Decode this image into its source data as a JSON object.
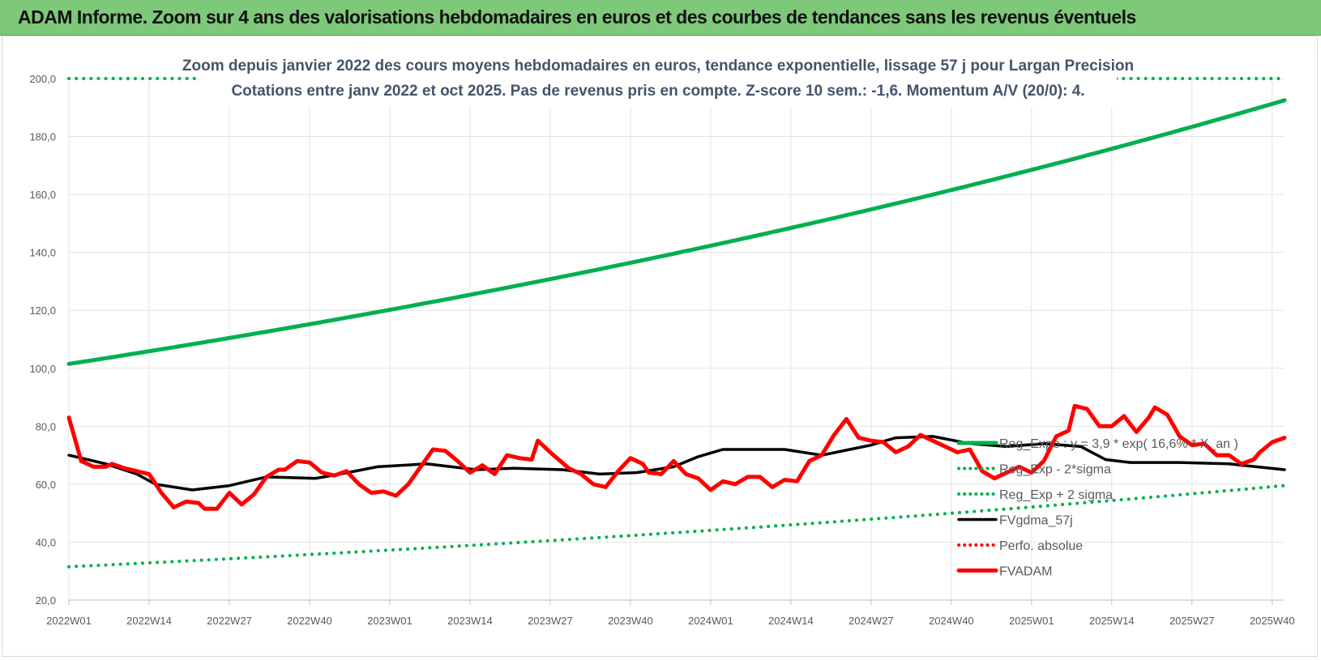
{
  "header": {
    "title": "ADAM Informe. Zoom sur 4 ans des valorisations hebdomadaires en euros et des courbes de tendances sans les revenus éventuels"
  },
  "chart_data": {
    "type": "line",
    "title": "Zoom depuis janvier 2022 des cours moyens hebdomadaires en euros, tendance exponentielle, lissage 57 j pour Largan Precision",
    "subtitle": "Cotations entre janv 2022 et oct 2025. Pas de revenus pris en compte. Z-score 10 sem.: -1,6.  Momentum A/V (20/0): 4.",
    "xlabel": "",
    "ylabel": "",
    "ylim": [
      20,
      200
    ],
    "yticks": [
      20,
      40,
      60,
      80,
      100,
      120,
      140,
      160,
      180,
      200
    ],
    "ytick_labels": [
      "20,0",
      "40,0",
      "60,0",
      "80,0",
      "100,0",
      "120,0",
      "140,0",
      "160,0",
      "180,0",
      "200,0"
    ],
    "x_count": 198,
    "xtick_labels": [
      {
        "i": 0,
        "label": "2022W01"
      },
      {
        "i": 13,
        "label": "2022W14"
      },
      {
        "i": 26,
        "label": "2022W27"
      },
      {
        "i": 39,
        "label": "2022W40"
      },
      {
        "i": 52,
        "label": "2023W01"
      },
      {
        "i": 65,
        "label": "2023W14"
      },
      {
        "i": 78,
        "label": "2023W27"
      },
      {
        "i": 91,
        "label": "2023W40"
      },
      {
        "i": 104,
        "label": "2024W01"
      },
      {
        "i": 117,
        "label": "2024W14"
      },
      {
        "i": 130,
        "label": "2024W27"
      },
      {
        "i": 143,
        "label": "2024W40"
      },
      {
        "i": 156,
        "label": "2025W01"
      },
      {
        "i": 169,
        "label": "2025W14"
      },
      {
        "i": 182,
        "label": "2025W27"
      },
      {
        "i": 195,
        "label": "2025W40"
      }
    ],
    "grid": true,
    "legend_position": "right",
    "series": [
      {
        "name": "Reg_Expo : y = 3,9 * exp( 16,6% * X_an )",
        "color": "#00b050",
        "style": "solid-thick",
        "kind": "exponential",
        "start": 101.5,
        "end": 192.5
      },
      {
        "name": "Reg_Exp - 2*sigma",
        "color": "#00b050",
        "style": "dotted",
        "kind": "exponential",
        "start": 31.5,
        "end": 59.5
      },
      {
        "name": "Reg_Exp + 2 sigma",
        "color": "#00b050",
        "style": "dotted",
        "kind": "exponential",
        "start": 200,
        "end": 200
      },
      {
        "name": "FVgdma_57j",
        "color": "#000000",
        "style": "solid",
        "kind": "points",
        "points": [
          [
            0,
            70
          ],
          [
            6,
            67
          ],
          [
            11,
            63.5
          ],
          [
            14,
            60
          ],
          [
            20,
            58
          ],
          [
            26,
            59.5
          ],
          [
            32,
            62.5
          ],
          [
            40,
            62
          ],
          [
            44,
            63.5
          ],
          [
            50,
            66
          ],
          [
            58,
            67
          ],
          [
            66,
            65
          ],
          [
            72,
            65.5
          ],
          [
            80,
            65
          ],
          [
            86,
            63.5
          ],
          [
            92,
            64
          ],
          [
            98,
            66
          ],
          [
            102,
            69.5
          ],
          [
            106,
            72
          ],
          [
            116,
            72
          ],
          [
            122,
            70
          ],
          [
            130,
            73.5
          ],
          [
            134,
            76
          ],
          [
            140,
            76.5
          ],
          [
            146,
            74
          ],
          [
            152,
            73
          ],
          [
            158,
            74
          ],
          [
            164,
            73
          ],
          [
            168,
            68.5
          ],
          [
            172,
            67.5
          ],
          [
            180,
            67.5
          ],
          [
            188,
            67
          ],
          [
            197,
            65
          ]
        ]
      },
      {
        "name": "Perfo. absolue",
        "color": "#ff0000",
        "style": "dotted",
        "kind": "none"
      },
      {
        "name": "FVADAM",
        "color": "#ff0000",
        "style": "solid-thick",
        "kind": "points",
        "points": [
          [
            0,
            83
          ],
          [
            2,
            68
          ],
          [
            4,
            66
          ],
          [
            6,
            66
          ],
          [
            7,
            67
          ],
          [
            9,
            65.5
          ],
          [
            11,
            64.5
          ],
          [
            13,
            63.5
          ],
          [
            15,
            57
          ],
          [
            17,
            52
          ],
          [
            19,
            54
          ],
          [
            21,
            53.5
          ],
          [
            22,
            51.5
          ],
          [
            24,
            51.5
          ],
          [
            26,
            57
          ],
          [
            28,
            53
          ],
          [
            30,
            56.5
          ],
          [
            32,
            62.5
          ],
          [
            34,
            65
          ],
          [
            35,
            65
          ],
          [
            37,
            68
          ],
          [
            39,
            67.5
          ],
          [
            41,
            64
          ],
          [
            43,
            63
          ],
          [
            45,
            64.5
          ],
          [
            47,
            60
          ],
          [
            49,
            57
          ],
          [
            51,
            57.5
          ],
          [
            53,
            56
          ],
          [
            55,
            60
          ],
          [
            57,
            66
          ],
          [
            59,
            72
          ],
          [
            61,
            71.5
          ],
          [
            63,
            68
          ],
          [
            65,
            64
          ],
          [
            67,
            66.5
          ],
          [
            69,
            63.5
          ],
          [
            71,
            70
          ],
          [
            73,
            69
          ],
          [
            75,
            68.5
          ],
          [
            76,
            75
          ],
          [
            78,
            71
          ],
          [
            81,
            65.5
          ],
          [
            83,
            63.5
          ],
          [
            85,
            60
          ],
          [
            87,
            59
          ],
          [
            89,
            64.5
          ],
          [
            91,
            69
          ],
          [
            93,
            67
          ],
          [
            94,
            64
          ],
          [
            96,
            63.5
          ],
          [
            98,
            68
          ],
          [
            100,
            63.5
          ],
          [
            102,
            62
          ],
          [
            104,
            58
          ],
          [
            106,
            61
          ],
          [
            108,
            60
          ],
          [
            110,
            62.5
          ],
          [
            112,
            62.5
          ],
          [
            114,
            59
          ],
          [
            116,
            61.5
          ],
          [
            118,
            61
          ],
          [
            120,
            68
          ],
          [
            122,
            70
          ],
          [
            124,
            77
          ],
          [
            126,
            82.5
          ],
          [
            128,
            76
          ],
          [
            130,
            75
          ],
          [
            132,
            74.5
          ],
          [
            134,
            71
          ],
          [
            136,
            73
          ],
          [
            138,
            77
          ],
          [
            140,
            75
          ],
          [
            142,
            73
          ],
          [
            144,
            71
          ],
          [
            146,
            72
          ],
          [
            148,
            64.5
          ],
          [
            150,
            62
          ],
          [
            152,
            64
          ],
          [
            154,
            66
          ],
          [
            156,
            64
          ],
          [
            158,
            68
          ],
          [
            160,
            76.5
          ],
          [
            162,
            78.5
          ],
          [
            163,
            87
          ],
          [
            165,
            86
          ],
          [
            167,
            80
          ],
          [
            169,
            80
          ],
          [
            171,
            83.5
          ],
          [
            173,
            78
          ],
          [
            175,
            83
          ],
          [
            176,
            86.5
          ],
          [
            178,
            84
          ],
          [
            180,
            76.5
          ],
          [
            182,
            73.5
          ],
          [
            184,
            74
          ],
          [
            186,
            70
          ],
          [
            188,
            70
          ],
          [
            190,
            67
          ],
          [
            192,
            68.5
          ],
          [
            193,
            71
          ],
          [
            195,
            74.5
          ],
          [
            197,
            76
          ]
        ]
      }
    ]
  },
  "legend_lines": [
    {
      "label": "Reg_Expo : y = 3,9 * exp( 16,6% * X_an )"
    },
    {
      "label": "Reg_Exp - 2*sigma"
    },
    {
      "label": "Reg_Exp + 2 sigma"
    },
    {
      "label": "FVgdma_57j"
    },
    {
      "label": "Perfo. absolue"
    },
    {
      "label": "FVADAM"
    }
  ]
}
